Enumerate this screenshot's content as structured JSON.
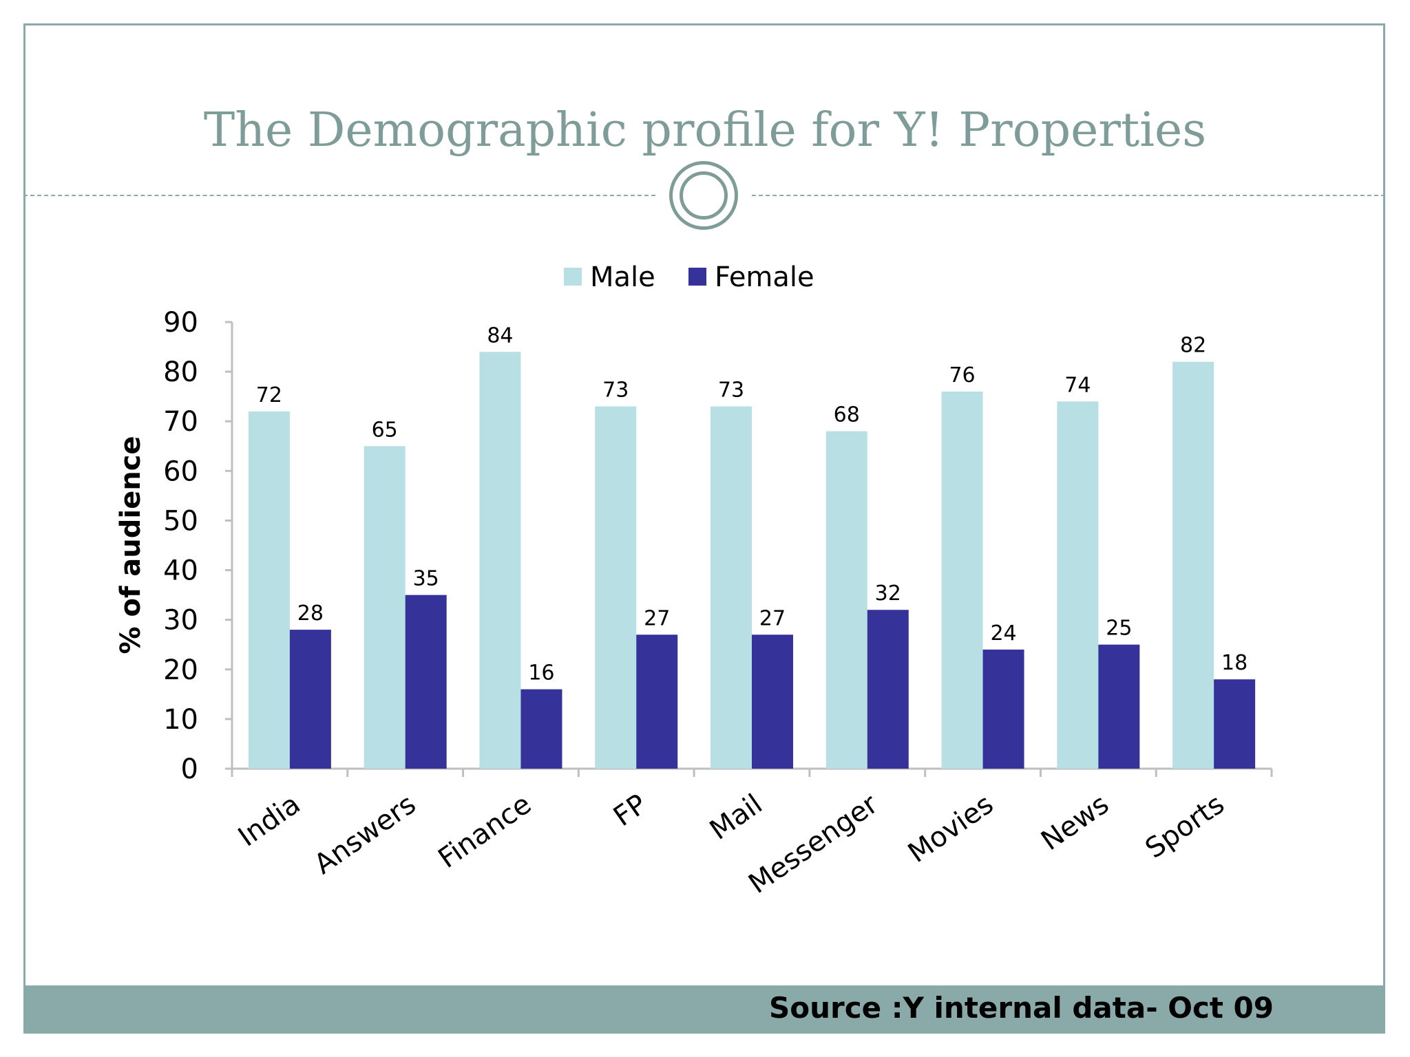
{
  "slide": {
    "title": "The Demographic profile for Y! Properties",
    "source": "Source :Y internal data- Oct 09"
  },
  "colors": {
    "male": "#b8e0e4",
    "female": "#353399",
    "title": "#7e9c98",
    "footer": "#8aa9a9"
  },
  "chart_data": {
    "type": "bar",
    "categories": [
      "India",
      "Answers",
      "Finance",
      "FP",
      "Mail",
      "Messenger",
      "Movies",
      "News",
      "Sports"
    ],
    "series": [
      {
        "name": "Male",
        "values": [
          72,
          65,
          84,
          73,
          73,
          68,
          76,
          74,
          82
        ]
      },
      {
        "name": "Female",
        "values": [
          28,
          35,
          16,
          27,
          27,
          32,
          24,
          25,
          18
        ]
      }
    ],
    "ylabel": "% of audience",
    "ylim": [
      0,
      90
    ],
    "yticks": [
      0,
      10,
      20,
      30,
      40,
      50,
      60,
      70,
      80,
      90
    ],
    "legend": "top",
    "grid": false,
    "data_labels": true
  }
}
